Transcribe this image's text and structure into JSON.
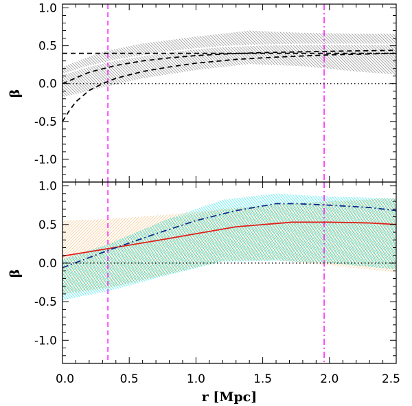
{
  "chart_data": {
    "type": "line",
    "xlabel": "r [Mpc]",
    "xlim": [
      0.0,
      2.5
    ],
    "x_ticks": [
      "0.0",
      "0.5",
      "1.0",
      "1.5",
      "2.0",
      "2.5"
    ],
    "panels": [
      {
        "id": "top",
        "ylabel": "β",
        "ylim": [
          -1.3,
          1.05
        ],
        "y_ticks": [
          "1.0",
          "0.5",
          "0.0",
          "-0.5",
          "-1.0"
        ],
        "bands": [
          {
            "name": "uncertainty band",
            "color": "#8a8a8a",
            "x": [
              0.0,
              0.3,
              0.6,
              1.0,
              1.4,
              1.8,
              2.2,
              2.5
            ],
            "upper": [
              0.22,
              0.42,
              0.53,
              0.62,
              0.7,
              0.67,
              0.66,
              0.66
            ],
            "lower": [
              -0.18,
              -0.05,
              0.07,
              0.18,
              0.26,
              0.23,
              0.16,
              0.12
            ]
          }
        ],
        "series": [
          {
            "name": "white solid",
            "style": "solid",
            "color": "#ffffff",
            "x": [
              0.0,
              0.2,
              0.4,
              0.6,
              0.8,
              1.0,
              1.2,
              1.5,
              1.8,
              2.1,
              2.5
            ],
            "y": [
              0.12,
              0.23,
              0.31,
              0.37,
              0.42,
              0.46,
              0.49,
              0.51,
              0.52,
              0.52,
              0.52
            ]
          },
          {
            "name": "dashed horizontal",
            "style": "dashed",
            "color": "#000000",
            "x": [
              0.0,
              2.5
            ],
            "y": [
              0.4,
              0.4
            ]
          },
          {
            "name": "dashed model 1",
            "style": "dashed",
            "color": "#000000",
            "x": [
              0.0,
              0.2,
              0.4,
              0.6,
              0.8,
              1.0,
              1.2,
              1.5,
              1.8,
              2.1,
              2.5
            ],
            "y": [
              0.0,
              0.15,
              0.24,
              0.3,
              0.34,
              0.37,
              0.39,
              0.41,
              0.42,
              0.43,
              0.44
            ]
          },
          {
            "name": "dashed model 2",
            "style": "dashed",
            "color": "#000000",
            "x": [
              0.0,
              0.05,
              0.1,
              0.2,
              0.3,
              0.4,
              0.6,
              0.8,
              1.0,
              1.3,
              1.6,
              2.0,
              2.5
            ],
            "y": [
              -0.5,
              -0.36,
              -0.24,
              -0.09,
              0.0,
              0.07,
              0.16,
              0.22,
              0.27,
              0.32,
              0.35,
              0.38,
              0.4
            ]
          },
          {
            "name": "zero reference",
            "style": "dotted",
            "color": "#000000",
            "x": [
              0.0,
              2.5
            ],
            "y": [
              0.0,
              0.0
            ]
          }
        ]
      },
      {
        "id": "bottom",
        "ylabel": "β",
        "ylim": [
          -1.3,
          1.05
        ],
        "y_ticks": [
          "1.0",
          "0.5",
          "0.0",
          "-0.5",
          "-1.0"
        ],
        "bands": [
          {
            "name": "cyan band",
            "color": "#30e8ee",
            "x": [
              0.0,
              0.35,
              0.8,
              1.2,
              1.6,
              2.0,
              2.5
            ],
            "upper": [
              0.05,
              0.25,
              0.58,
              0.82,
              0.9,
              0.86,
              0.84
            ],
            "lower": [
              -0.48,
              -0.36,
              -0.15,
              0.02,
              0.03,
              0.0,
              -0.08
            ]
          },
          {
            "name": "orange band",
            "color": "#f0a040",
            "x": [
              0.0,
              0.35,
              0.8,
              1.2,
              1.6,
              2.0,
              2.5
            ],
            "upper": [
              0.55,
              0.57,
              0.63,
              0.7,
              0.76,
              0.8,
              0.84
            ],
            "lower": [
              -0.4,
              -0.32,
              -0.14,
              0.03,
              0.04,
              -0.03,
              -0.12
            ]
          }
        ],
        "series": [
          {
            "name": "red solid",
            "style": "solid",
            "color": "#e0201a",
            "x": [
              0.0,
              0.35,
              0.7,
              1.0,
              1.3,
              1.72,
              2.0,
              2.3,
              2.5
            ],
            "y": [
              0.09,
              0.19,
              0.29,
              0.38,
              0.47,
              0.53,
              0.53,
              0.52,
              0.5
            ]
          },
          {
            "name": "blue dash-dot",
            "style": "dashdot",
            "color": "#0a2a8a",
            "x": [
              0.0,
              0.35,
              0.7,
              1.0,
              1.3,
              1.6,
              1.75,
              2.0,
              2.3,
              2.5
            ],
            "y": [
              -0.06,
              0.17,
              0.38,
              0.55,
              0.68,
              0.77,
              0.77,
              0.75,
              0.72,
              0.68
            ]
          },
          {
            "name": "zero reference",
            "style": "dotted",
            "color": "#000000",
            "x": [
              0.0,
              2.5
            ],
            "y": [
              0.0,
              0.0
            ]
          }
        ]
      }
    ],
    "vertical_lines": [
      {
        "name": "dashed vertical",
        "x": 0.34,
        "style": "dashed",
        "color": "#ff00ff"
      },
      {
        "name": "dash-dot vertical",
        "x": 1.96,
        "style": "dashdot",
        "color": "#ff00ff"
      }
    ]
  }
}
